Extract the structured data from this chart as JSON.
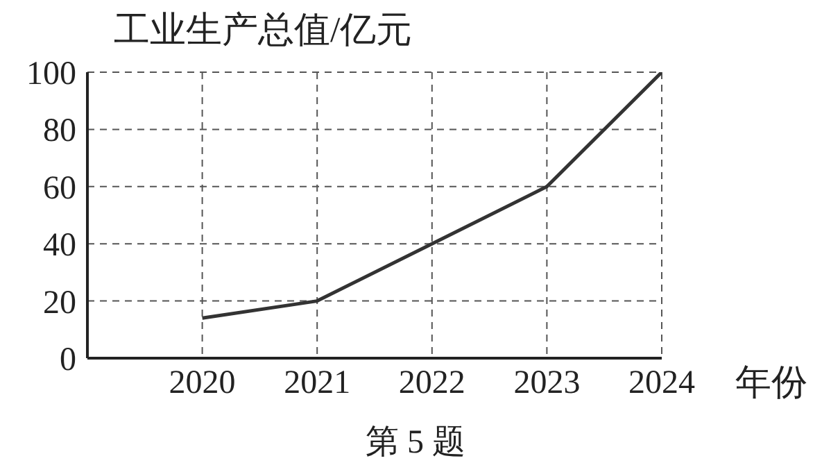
{
  "chart_data": {
    "type": "line",
    "xlabel": "年份",
    "ylabel": "工业生产总值/亿元",
    "x": [
      2020,
      2021,
      2022,
      2023,
      2024
    ],
    "series": [
      {
        "color": "#333333",
        "values": [
          14,
          20,
          40,
          60,
          100
        ]
      }
    ],
    "xlim": [
      2019,
      2024
    ],
    "xticks": [
      2020,
      2021,
      2022,
      2023,
      2024
    ],
    "ylim": [
      0,
      100
    ],
    "yticks": [
      0,
      20,
      40,
      60,
      80,
      100
    ],
    "grid": true,
    "marker": "none",
    "line_style": "solid",
    "annotations": [
      "第 5 题"
    ]
  }
}
